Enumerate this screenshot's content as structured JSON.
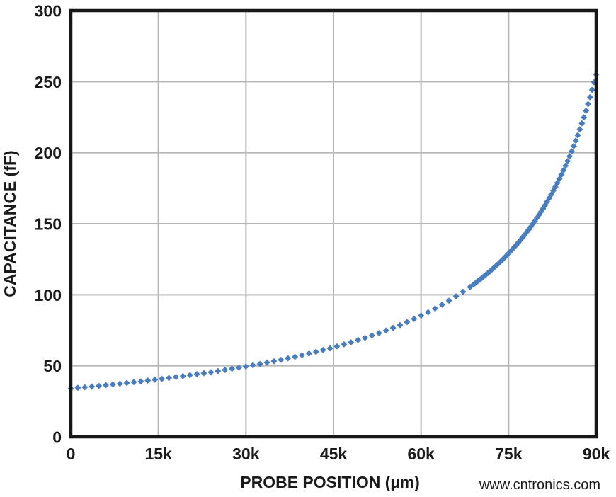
{
  "page": {
    "background_color": "#ffffff",
    "text_color": "#1a1a1a"
  },
  "watermark": {
    "text": "www.cntronics.com",
    "color": "#c9e8bc"
  },
  "chart_data": {
    "type": "scatter",
    "marker": "diamond",
    "marker_color": "#4a7dbd",
    "marker_half_size": 4.5,
    "title": "",
    "xlabel": "PROBE POSITION (µm)",
    "ylabel": "CAPACITANCE (fF)",
    "xlim": [
      0,
      90000
    ],
    "ylim": [
      0,
      300
    ],
    "grid": true,
    "gridline_color": "#b5b5b5",
    "axis_color": "#161616",
    "legend": "none",
    "x_ticks": [
      {
        "value": 0,
        "label": "0"
      },
      {
        "value": 15000,
        "label": "15k"
      },
      {
        "value": 30000,
        "label": "30k"
      },
      {
        "value": 45000,
        "label": "45k"
      },
      {
        "value": 60000,
        "label": "60k"
      },
      {
        "value": 75000,
        "label": "75k"
      },
      {
        "value": 90000,
        "label": "90k"
      }
    ],
    "y_ticks": [
      {
        "value": 0,
        "label": "0"
      },
      {
        "value": 50,
        "label": "50"
      },
      {
        "value": 100,
        "label": "100"
      },
      {
        "value": 150,
        "label": "150"
      },
      {
        "value": 200,
        "label": "200"
      },
      {
        "value": 250,
        "label": "250"
      },
      {
        "value": 300,
        "label": "300"
      }
    ],
    "series": [
      {
        "name": "capacitance-vs-probe-position",
        "x": [
          0,
          1200,
          2400,
          3600,
          4800,
          6000,
          7200,
          8400,
          9600,
          10800,
          12000,
          13200,
          14400,
          15600,
          16800,
          18000,
          19200,
          20400,
          21600,
          22800,
          24000,
          25200,
          26400,
          27600,
          28800,
          30000,
          31200,
          32400,
          33600,
          34800,
          36000,
          37200,
          38400,
          39600,
          40800,
          42000,
          43200,
          44400,
          45600,
          46800,
          48000,
          49200,
          50400,
          51600,
          52800,
          54000,
          55200,
          56400,
          57600,
          58800,
          60000,
          61200,
          62400,
          63600,
          64800,
          66000,
          67200,
          68400,
          69000,
          69350,
          69700,
          70050,
          70400,
          70750,
          71100,
          71450,
          71800,
          72150,
          72500,
          72850,
          73200,
          73550,
          73900,
          74250,
          74600,
          74950,
          75300,
          75650,
          76000,
          76350,
          76700,
          77050,
          77400,
          77750,
          78100,
          78450,
          78800,
          79150,
          79500,
          79850,
          80200,
          80550,
          80900,
          81250,
          81600,
          81950,
          82300,
          82650,
          83000,
          83350,
          83700,
          84050,
          84400,
          84750,
          85100,
          85450,
          85800,
          86150,
          86500,
          86850,
          87200,
          87550,
          87900,
          88250,
          88600,
          88950,
          89300,
          89650,
          90000
        ],
        "y": [
          34.0,
          34.5,
          34.9,
          35.4,
          35.9,
          36.4,
          36.9,
          37.4,
          37.9,
          38.5,
          39.0,
          39.6,
          40.2,
          40.8,
          41.4,
          42.1,
          42.7,
          43.4,
          44.1,
          44.8,
          45.5,
          46.3,
          47.1,
          47.9,
          48.7,
          49.5,
          50.4,
          51.3,
          52.3,
          53.2,
          54.2,
          55.3,
          56.3,
          57.5,
          58.6,
          59.8,
          61.1,
          62.3,
          63.7,
          65.1,
          66.5,
          68.1,
          69.6,
          71.3,
          73.0,
          74.8,
          76.7,
          78.7,
          80.8,
          83.0,
          85.3,
          87.7,
          90.3,
          93.0,
          95.8,
          98.9,
          102.1,
          105.5,
          107.3,
          108.4,
          109.5,
          110.6,
          111.8,
          112.9,
          114.1,
          115.3,
          116.5,
          117.8,
          119.1,
          120.4,
          121.7,
          123.1,
          124.5,
          125.9,
          127.4,
          128.9,
          130.4,
          132.0,
          133.6,
          135.2,
          136.9,
          138.6,
          140.4,
          142.2,
          144.1,
          145.9,
          147.9,
          149.9,
          151.9,
          154.1,
          156.2,
          158.4,
          160.7,
          163.1,
          165.5,
          168.0,
          170.5,
          173.2,
          175.9,
          178.7,
          181.6,
          184.5,
          187.6,
          190.8,
          194.1,
          197.5,
          201.0,
          204.6,
          208.4,
          212.3,
          216.4,
          220.6,
          224.9,
          229.5,
          234.2,
          239.1,
          244.2,
          249.6,
          255.1
        ]
      }
    ]
  }
}
